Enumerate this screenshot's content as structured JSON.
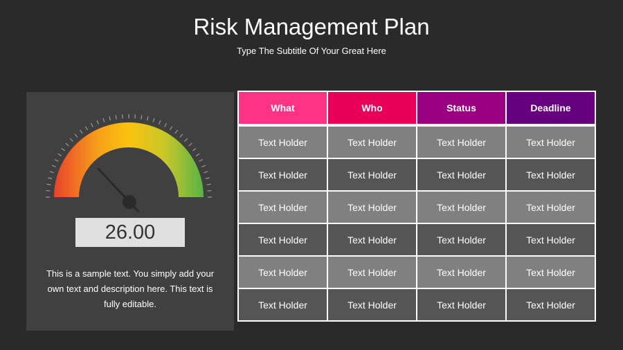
{
  "title": "Risk Management Plan",
  "subtitle": "Type The Subtitle Of Your Great Here",
  "gauge": {
    "value_text": "26.00",
    "value_percent": 26,
    "colors": [
      "#e8432a",
      "#f7a11b",
      "#fbc30d",
      "#c6c62a",
      "#56b447"
    ]
  },
  "description": "This is a sample text. You simply add your own text and description here. This text is fully editable.",
  "table": {
    "headers": [
      {
        "label": "What",
        "color": "#ff3385"
      },
      {
        "label": "Who",
        "color": "#e8005a"
      },
      {
        "label": "Status",
        "color": "#9c0082"
      },
      {
        "label": "Deadline",
        "color": "#66007f"
      }
    ],
    "rows": [
      [
        "Text Holder",
        "Text Holder",
        "Text Holder",
        "Text Holder"
      ],
      [
        "Text Holder",
        "Text Holder",
        "Text Holder",
        "Text Holder"
      ],
      [
        "Text Holder",
        "Text Holder",
        "Text Holder",
        "Text Holder"
      ],
      [
        "Text Holder",
        "Text Holder",
        "Text Holder",
        "Text Holder"
      ],
      [
        "Text Holder",
        "Text Holder",
        "Text Holder",
        "Text Holder"
      ],
      [
        "Text Holder",
        "Text Holder",
        "Text Holder",
        "Text Holder"
      ]
    ]
  }
}
